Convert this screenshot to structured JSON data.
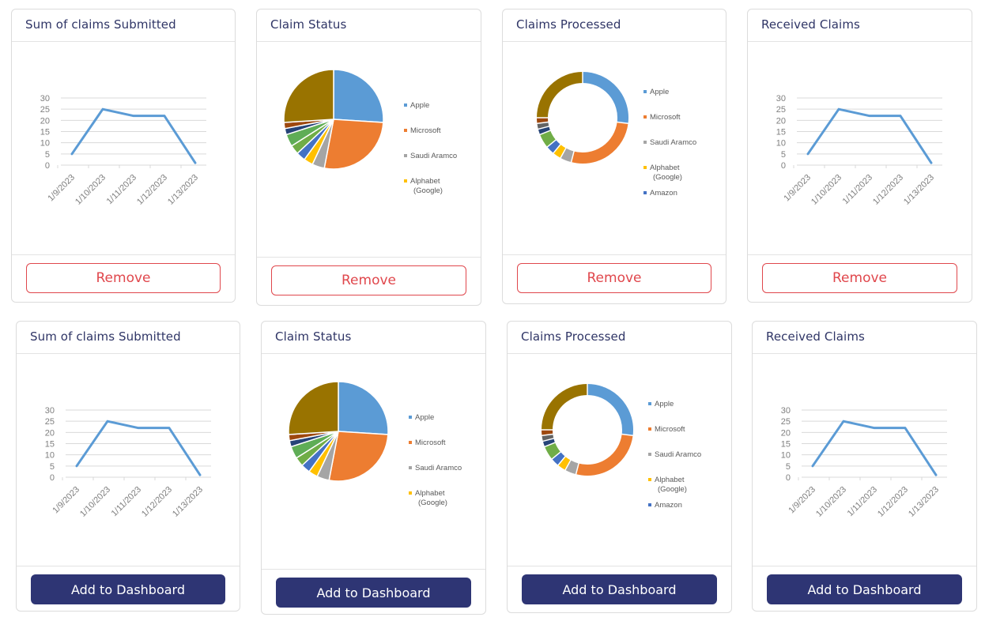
{
  "cards": [
    {
      "id": "c1",
      "title": "Sum of claims Submitted",
      "chart": "line",
      "button": "Remove",
      "button_type": "remove"
    },
    {
      "id": "c2",
      "title": "Claim Status",
      "chart": "pie",
      "button": "Remove",
      "button_type": "remove"
    },
    {
      "id": "c3",
      "title": "Claims Processed",
      "chart": "donut",
      "button": "Remove",
      "button_type": "remove"
    },
    {
      "id": "c4",
      "title": "Received Claims",
      "chart": "line",
      "button": "Remove",
      "button_type": "remove"
    },
    {
      "id": "c5",
      "title": "Sum of claims Submitted",
      "chart": "line",
      "button": "Add to Dashboard",
      "button_type": "add"
    },
    {
      "id": "c6",
      "title": "Claim Status",
      "chart": "pie",
      "button": "Add to Dashboard",
      "button_type": "add"
    },
    {
      "id": "c7",
      "title": "Claims Processed",
      "chart": "donut",
      "button": "Add to Dashboard",
      "button_type": "add"
    },
    {
      "id": "c8",
      "title": "Received Claims",
      "chart": "line",
      "button": "Add to Dashboard",
      "button_type": "add"
    }
  ],
  "colors": {
    "title_text": "#2f3566",
    "remove_border": "#e0474c",
    "add_bg": "#2e3574",
    "line": "#5b9bd5",
    "axis_text": "#7f7f7f"
  },
  "chart_data": [
    {
      "type": "line",
      "x": [
        "1/9/2023",
        "1/10/2023",
        "1/11/2023",
        "1/12/2023",
        "1/13/2023"
      ],
      "series": [
        {
          "values": [
            5,
            25,
            22,
            22,
            1
          ]
        }
      ],
      "yticks": [
        0,
        5,
        10,
        15,
        20,
        25,
        30
      ],
      "ylim": [
        0,
        30
      ],
      "grid": true
    },
    {
      "type": "pie",
      "legend_position": "right",
      "series": [
        {
          "labels": [
            "Apple",
            "Microsoft",
            "Saudi Aramco",
            "Alphabet (Google)",
            "",
            "",
            "",
            "",
            "",
            ""
          ],
          "values": [
            26,
            27,
            4,
            3,
            3,
            3,
            4,
            2,
            2,
            26
          ]
        }
      ],
      "legend": [
        "Apple",
        "Microsoft",
        "Saudi Aramco",
        "Alphabet (Google)"
      ],
      "colors": [
        "#5b9bd5",
        "#ed7d31",
        "#a5a5a5",
        "#ffc000",
        "#4472c4",
        "#70ad47",
        "#5fad56",
        "#264478",
        "#9e480e",
        "#997300"
      ]
    },
    {
      "type": "pie",
      "donut": true,
      "legend_position": "right",
      "series": [
        {
          "labels": [
            "Apple",
            "Microsoft",
            "Saudi Aramco",
            "Alphabet (Google)",
            "Amazon",
            "",
            "",
            "",
            "",
            ""
          ],
          "values": [
            27,
            27,
            4,
            3,
            3,
            5,
            2,
            2,
            2,
            25
          ]
        }
      ],
      "legend": [
        "Apple",
        "Microsoft",
        "Saudi Aramco",
        "Alphabet (Google)",
        "Amazon"
      ],
      "colors": [
        "#5b9bd5",
        "#ed7d31",
        "#a5a5a5",
        "#ffc000",
        "#4472c4",
        "#70ad47",
        "#264478",
        "#636363",
        "#9e480e",
        "#997300"
      ]
    }
  ]
}
